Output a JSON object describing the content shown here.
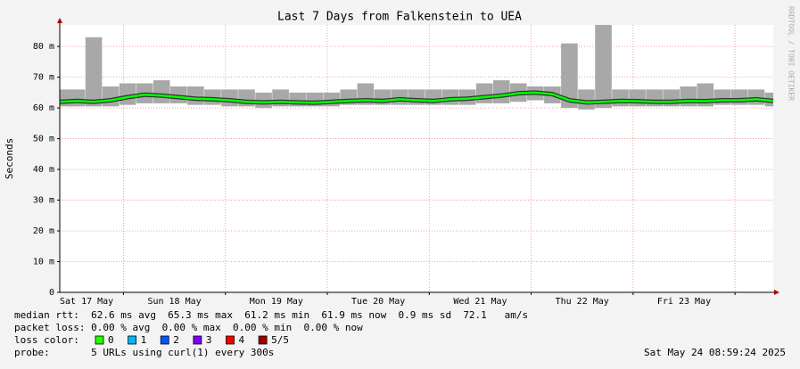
{
  "chart_data": {
    "type": "line",
    "title": "Last 7 Days from Falkenstein to UEA",
    "y_label": "Seconds",
    "watermark": "RRDTOOL / TOBI OETIKER",
    "x": [
      9,
      13,
      17,
      21,
      25,
      29,
      33,
      37,
      41,
      45,
      49,
      53,
      57,
      61,
      65,
      69,
      73,
      77,
      81,
      85,
      89,
      93,
      97,
      101,
      105,
      109,
      113,
      117,
      121,
      125,
      129,
      133,
      137,
      141,
      145,
      149,
      153,
      157,
      161,
      165,
      169,
      173,
      177
    ],
    "xlim": [
      9,
      177
    ],
    "xticks": [
      24,
      48,
      72,
      96,
      120,
      144,
      168
    ],
    "xlabels": [
      {
        "value": 12,
        "label": "Sat 17 May"
      },
      {
        "value": 36,
        "label": "Sun 18 May"
      },
      {
        "value": 60,
        "label": "Mon 19 May"
      },
      {
        "value": 84,
        "label": "Tue 20 May"
      },
      {
        "value": 108,
        "label": "Wed 21 May"
      },
      {
        "value": 132,
        "label": "Thu 22 May"
      },
      {
        "value": 156,
        "label": "Fri 23 May"
      }
    ],
    "ylim": [
      0,
      87
    ],
    "yticks": [
      0,
      {
        "value": 10,
        "label": "10 m"
      },
      {
        "value": 20,
        "label": "20 m"
      },
      {
        "value": 30,
        "label": "30 m"
      },
      {
        "value": 40,
        "label": "40 m"
      },
      {
        "value": 50,
        "label": "50 m"
      },
      {
        "value": 60,
        "label": "60 m"
      },
      {
        "value": 70,
        "label": "70 m"
      },
      {
        "value": 80,
        "label": "80 m"
      }
    ],
    "grid": true,
    "smoke": {
      "color": "#a8a8a8",
      "min": [
        60.5,
        60.5,
        60.5,
        60.5,
        61,
        61.5,
        61.5,
        61.5,
        61,
        61,
        60.5,
        60.5,
        60,
        60.5,
        60.5,
        60.5,
        60.5,
        61,
        61,
        61,
        61,
        61,
        61,
        61,
        61,
        61.5,
        61.5,
        62,
        62.5,
        61.5,
        60,
        59.5,
        60,
        60.5,
        60.5,
        60.5,
        60.5,
        60.5,
        60.5,
        61,
        61,
        61,
        60.5
      ],
      "max": [
        66,
        66,
        83,
        67,
        68,
        68,
        69,
        67,
        67,
        66,
        66,
        66,
        65,
        66,
        65,
        65,
        65,
        66,
        68,
        66,
        66,
        66,
        66,
        66,
        66,
        68,
        69,
        68,
        67,
        67,
        81,
        66,
        87,
        66,
        66,
        66,
        66,
        67,
        68,
        66,
        66,
        66,
        65
      ]
    },
    "series": [
      {
        "color": "#00ff00",
        "values": [
          62,
          62.3,
          62,
          62.5,
          63.5,
          64.3,
          64,
          63.5,
          63,
          62.8,
          62.5,
          62,
          61.8,
          62,
          61.8,
          61.7,
          62,
          62.3,
          62.5,
          62.3,
          62.8,
          62.5,
          62.3,
          62.8,
          63,
          63.5,
          64,
          64.8,
          65,
          64.5,
          62.5,
          61.8,
          62,
          62.3,
          62.2,
          62,
          62,
          62.3,
          62.2,
          62.5,
          62.5,
          62.8,
          62.3
        ]
      }
    ]
  },
  "info": {
    "median": "median rtt:  62.6 ms avg  65.3 ms max  61.2 ms min  61.9 ms now  0.9 ms sd  72.1   am/s",
    "loss": "packet loss: 0.00 % avg  0.00 % max  0.00 % min  0.00 % now",
    "loss_color_label": "loss color:",
    "loss_colors": [
      {
        "label": "0",
        "color": "#26ff00"
      },
      {
        "label": "1",
        "color": "#00b8ff"
      },
      {
        "label": "2",
        "color": "#0059ff"
      },
      {
        "label": "3",
        "color": "#7e00ff"
      },
      {
        "label": "4",
        "color": "#ff0000"
      },
      {
        "label": "5/5",
        "color": "#a10000"
      }
    ],
    "probe": "probe:       5 URLs using curl(1) every 300s",
    "date": "Sat May 24 08:59:24 2025"
  }
}
